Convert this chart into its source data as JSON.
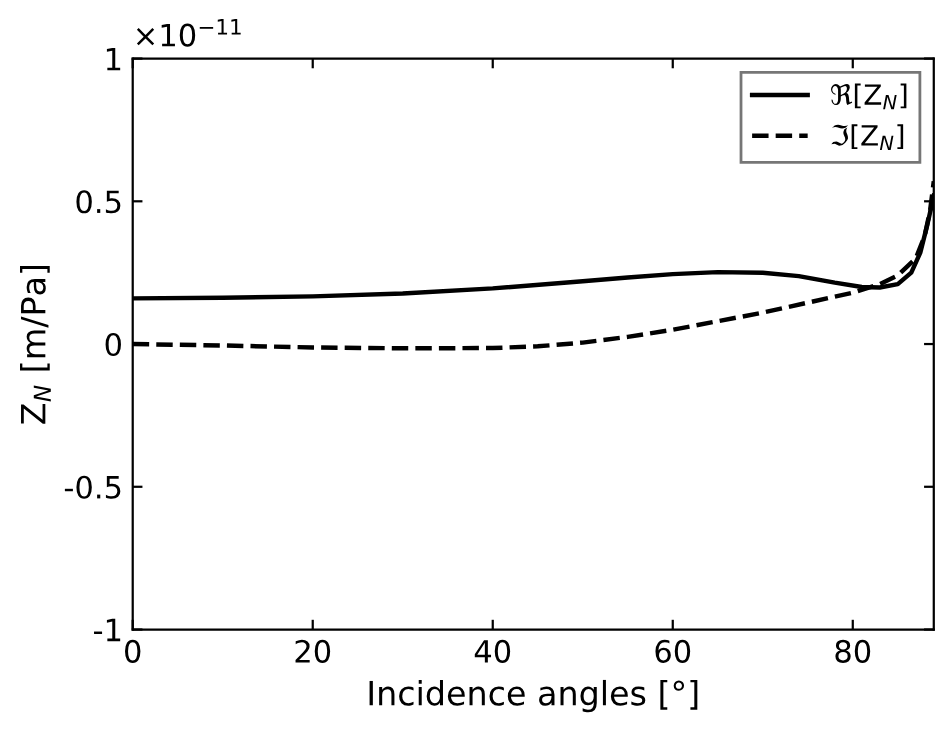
{
  "chart_data": {
    "type": "line",
    "xlabel": "Incidence angles [°]",
    "ylabel": "Z$_{N}$ [m/Pa]",
    "annotations": [
      "×10$^{−11}$"
    ],
    "xlim": [
      0,
      89
    ],
    "xticks": [
      0,
      20,
      40,
      60,
      80
    ],
    "ylim": [
      -1,
      1
    ],
    "yticks": [
      -1,
      -0.5,
      0,
      0.5,
      1
    ],
    "legend": "top right",
    "grid": false,
    "series": [
      {
        "name": "ℜ[Z$_{N}$]",
        "color": "#000000",
        "line_style": "solid",
        "x": [
          0,
          10,
          20,
          30,
          40,
          50,
          55,
          60,
          65,
          70,
          74,
          78,
          81,
          83,
          85,
          86.5,
          87.5,
          88.3,
          89
        ],
        "values": [
          0.16,
          0.162,
          0.167,
          0.177,
          0.195,
          0.22,
          0.233,
          0.245,
          0.252,
          0.25,
          0.238,
          0.215,
          0.2,
          0.198,
          0.21,
          0.25,
          0.32,
          0.42,
          0.52
        ]
      },
      {
        "name": "ℑ[Z$_{N}$]",
        "color": "#000000",
        "line_style": "dashed",
        "x": [
          0,
          10,
          20,
          30,
          40,
          45,
          50,
          55,
          60,
          65,
          70,
          75,
          80,
          83,
          85,
          87,
          88,
          88.6,
          89
        ],
        "values": [
          0.0,
          -0.005,
          -0.012,
          -0.015,
          -0.014,
          -0.008,
          0.005,
          0.025,
          0.05,
          0.08,
          0.11,
          0.145,
          0.18,
          0.21,
          0.24,
          0.3,
          0.38,
          0.47,
          0.57
        ]
      }
    ]
  }
}
